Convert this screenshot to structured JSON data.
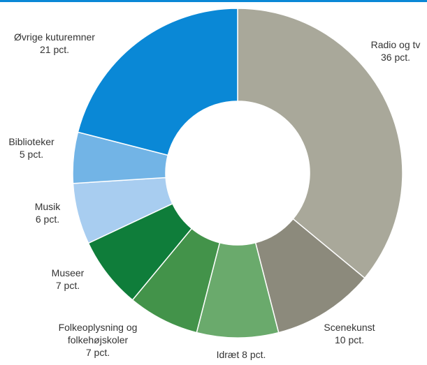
{
  "chart_data": {
    "type": "donut",
    "categories": [
      "Radio og tv",
      "Scenekunst",
      "Idræt",
      "Folkeoplysning og folkehøjskoler",
      "Museer",
      "Musik",
      "Biblioteker",
      "Øvrige kuturemner"
    ],
    "values": [
      36,
      10,
      8,
      7,
      7,
      6,
      5,
      21
    ],
    "value_labels": [
      "36 pct.",
      "10 pct.",
      "8 pct.",
      "7 pct.",
      "7 pct.",
      "6 pct.",
      "5 pct.",
      "21 pct."
    ],
    "colors": [
      "#a9a89a",
      "#8c8a7c",
      "#6aaa6c",
      "#43934a",
      "#0f7d3a",
      "#a8cdf0",
      "#72b4e6",
      "#0a88d6"
    ]
  }
}
